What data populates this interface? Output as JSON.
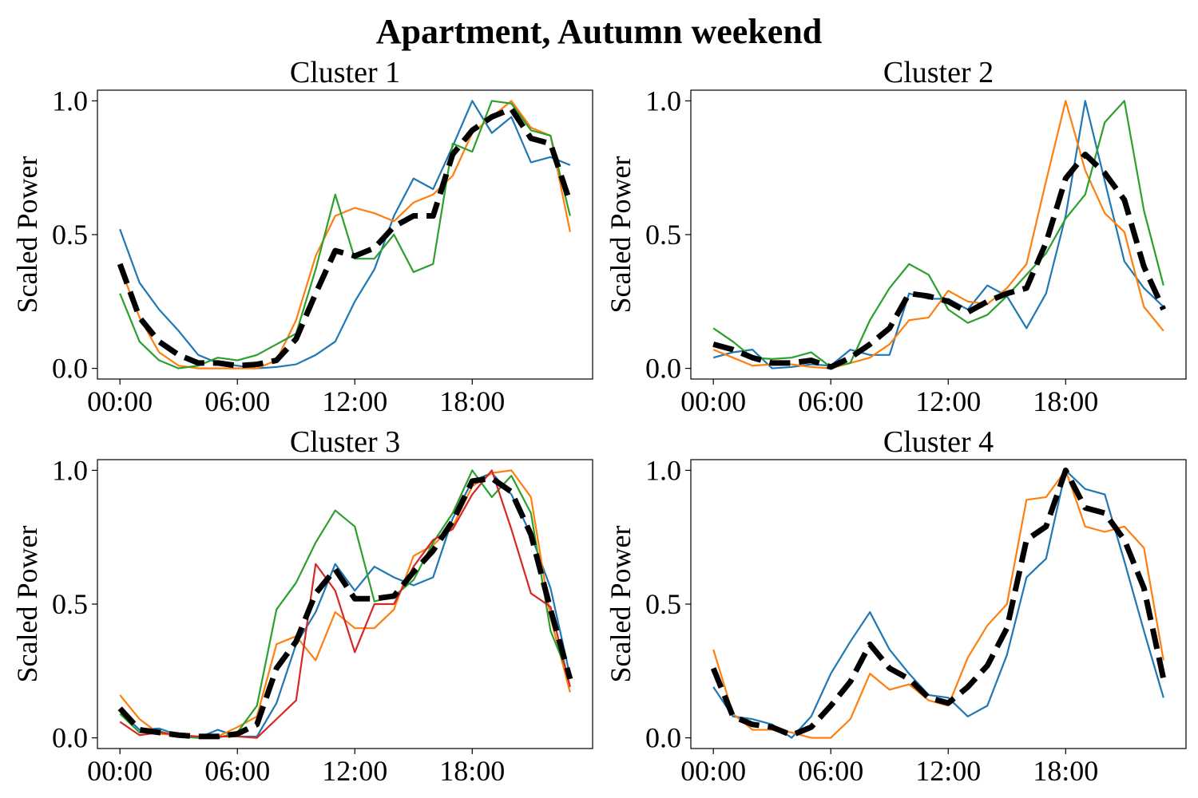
{
  "figure": {
    "title": "Apartment, Autumn weekend"
  },
  "colors": {
    "C0": "#1f77b4",
    "C1": "#ff7f0e",
    "C2": "#2ca02c",
    "C3": "#d62728",
    "centroid": "#000000"
  },
  "chart_data": [
    {
      "type": "line",
      "title": "Cluster 1",
      "ylabel": "Scaled Power",
      "xlabel": "",
      "x": [
        0,
        1,
        2,
        3,
        4,
        5,
        6,
        7,
        8,
        9,
        10,
        11,
        12,
        13,
        14,
        15,
        16,
        17,
        18,
        19,
        20,
        21,
        22,
        23
      ],
      "xticks": [
        0,
        6,
        12,
        18
      ],
      "xtick_labels": [
        "00:00",
        "06:00",
        "12:00",
        "18:00"
      ],
      "yticks": [
        0.0,
        0.5,
        1.0
      ],
      "ytick_labels": [
        "0.0",
        "0.5",
        "1.0"
      ],
      "xlim": [
        -1.15,
        24.15
      ],
      "ylim": [
        -0.04,
        1.04
      ],
      "grid": false,
      "series": [
        {
          "color": "C0",
          "values": [
            0.52,
            0.32,
            0.22,
            0.14,
            0.05,
            0.02,
            0.01,
            0.0,
            0.005,
            0.015,
            0.05,
            0.1,
            0.25,
            0.37,
            0.57,
            0.71,
            0.67,
            0.83,
            1.0,
            0.88,
            0.94,
            0.77,
            0.79,
            0.76
          ]
        },
        {
          "color": "C1",
          "values": [
            0.38,
            0.19,
            0.06,
            0.01,
            0.0,
            0.0,
            0.0,
            0.0,
            0.03,
            0.18,
            0.42,
            0.57,
            0.6,
            0.58,
            0.55,
            0.62,
            0.65,
            0.72,
            0.88,
            0.94,
            1.0,
            0.9,
            0.87,
            0.51
          ]
        },
        {
          "color": "C2",
          "values": [
            0.28,
            0.1,
            0.03,
            0.0,
            0.01,
            0.04,
            0.03,
            0.05,
            0.09,
            0.13,
            0.37,
            0.65,
            0.41,
            0.41,
            0.5,
            0.36,
            0.39,
            0.84,
            0.81,
            1.0,
            0.99,
            0.89,
            0.87,
            0.57
          ]
        },
        {
          "color": "centroid",
          "dashed": true,
          "values": [
            0.39,
            0.19,
            0.1,
            0.05,
            0.02,
            0.02,
            0.01,
            0.015,
            0.03,
            0.11,
            0.28,
            0.44,
            0.42,
            0.45,
            0.53,
            0.57,
            0.57,
            0.8,
            0.89,
            0.94,
            0.97,
            0.86,
            0.84,
            0.62
          ]
        }
      ]
    },
    {
      "type": "line",
      "title": "Cluster 2",
      "ylabel": "Scaled Power",
      "xlabel": "",
      "x": [
        0,
        1,
        2,
        3,
        4,
        5,
        6,
        7,
        8,
        9,
        10,
        11,
        12,
        13,
        14,
        15,
        16,
        17,
        18,
        19,
        20,
        21,
        22,
        23
      ],
      "xticks": [
        0,
        6,
        12,
        18
      ],
      "xtick_labels": [
        "00:00",
        "06:00",
        "12:00",
        "18:00"
      ],
      "yticks": [
        0.0,
        0.5,
        1.0
      ],
      "ytick_labels": [
        "0.0",
        "0.5",
        "1.0"
      ],
      "xlim": [
        -1.15,
        24.15
      ],
      "ylim": [
        -0.04,
        1.04
      ],
      "grid": false,
      "series": [
        {
          "color": "C0",
          "values": [
            0.04,
            0.06,
            0.07,
            0.0,
            0.005,
            0.015,
            0.01,
            0.07,
            0.05,
            0.05,
            0.28,
            0.26,
            0.26,
            0.22,
            0.31,
            0.27,
            0.15,
            0.28,
            0.57,
            1.0,
            0.7,
            0.4,
            0.3,
            0.23
          ]
        },
        {
          "color": "C1",
          "values": [
            0.07,
            0.04,
            0.01,
            0.015,
            0.015,
            0.005,
            0.0,
            0.02,
            0.04,
            0.09,
            0.18,
            0.19,
            0.29,
            0.25,
            0.24,
            0.3,
            0.39,
            0.7,
            1.0,
            0.74,
            0.58,
            0.51,
            0.23,
            0.14
          ]
        },
        {
          "color": "C2",
          "values": [
            0.15,
            0.1,
            0.04,
            0.035,
            0.04,
            0.06,
            0.005,
            0.02,
            0.18,
            0.3,
            0.39,
            0.35,
            0.22,
            0.17,
            0.2,
            0.27,
            0.35,
            0.43,
            0.56,
            0.65,
            0.92,
            1.0,
            0.59,
            0.31
          ]
        },
        {
          "color": "centroid",
          "dashed": true,
          "values": [
            0.09,
            0.07,
            0.04,
            0.02,
            0.02,
            0.03,
            0.005,
            0.04,
            0.09,
            0.15,
            0.28,
            0.27,
            0.25,
            0.21,
            0.25,
            0.28,
            0.3,
            0.47,
            0.71,
            0.8,
            0.73,
            0.63,
            0.38,
            0.22
          ]
        }
      ]
    },
    {
      "type": "line",
      "title": "Cluster 3",
      "ylabel": "Scaled Power",
      "xlabel": "",
      "x": [
        0,
        1,
        2,
        3,
        4,
        5,
        6,
        7,
        8,
        9,
        10,
        11,
        12,
        13,
        14,
        15,
        16,
        17,
        18,
        19,
        20,
        21,
        22,
        23
      ],
      "xticks": [
        0,
        6,
        12,
        18
      ],
      "xtick_labels": [
        "00:00",
        "06:00",
        "12:00",
        "18:00"
      ],
      "yticks": [
        0.0,
        0.5,
        1.0
      ],
      "ytick_labels": [
        "0.0",
        "0.5",
        "1.0"
      ],
      "xlim": [
        -1.15,
        24.15
      ],
      "ylim": [
        -0.04,
        1.04
      ],
      "grid": false,
      "series": [
        {
          "color": "C0",
          "values": [
            0.1,
            0.03,
            0.035,
            0.01,
            0.0,
            0.03,
            0.005,
            0.005,
            0.13,
            0.35,
            0.47,
            0.65,
            0.55,
            0.64,
            0.6,
            0.57,
            0.6,
            0.82,
            0.96,
            0.99,
            0.91,
            0.76,
            0.56,
            0.23
          ]
        },
        {
          "color": "C1",
          "values": [
            0.16,
            0.07,
            0.015,
            0.01,
            0.005,
            0.005,
            0.04,
            0.08,
            0.35,
            0.38,
            0.29,
            0.47,
            0.41,
            0.41,
            0.48,
            0.68,
            0.72,
            0.79,
            0.94,
            0.99,
            1.0,
            0.9,
            0.45,
            0.17
          ]
        },
        {
          "color": "C2",
          "values": [
            0.09,
            0.02,
            0.025,
            0.005,
            0.0,
            0.0,
            0.02,
            0.12,
            0.48,
            0.58,
            0.73,
            0.85,
            0.79,
            0.51,
            0.53,
            0.59,
            0.73,
            0.84,
            1.0,
            0.9,
            0.98,
            0.84,
            0.4,
            0.22
          ]
        },
        {
          "color": "C3",
          "values": [
            0.06,
            0.01,
            0.02,
            0.01,
            0.005,
            0.005,
            0.005,
            0.0,
            0.07,
            0.14,
            0.65,
            0.55,
            0.32,
            0.5,
            0.5,
            0.64,
            0.74,
            0.78,
            0.91,
            1.0,
            0.78,
            0.54,
            0.49,
            0.19
          ]
        },
        {
          "color": "centroid",
          "dashed": true,
          "values": [
            0.11,
            0.03,
            0.02,
            0.01,
            0.005,
            0.005,
            0.015,
            0.05,
            0.26,
            0.36,
            0.54,
            0.63,
            0.52,
            0.52,
            0.53,
            0.62,
            0.7,
            0.81,
            0.96,
            0.97,
            0.92,
            0.76,
            0.48,
            0.22
          ]
        }
      ]
    },
    {
      "type": "line",
      "title": "Cluster 4",
      "ylabel": "Scaled Power",
      "xlabel": "",
      "x": [
        0,
        1,
        2,
        3,
        4,
        5,
        6,
        7,
        8,
        9,
        10,
        11,
        12,
        13,
        14,
        15,
        16,
        17,
        18,
        19,
        20,
        21,
        22,
        23
      ],
      "xticks": [
        0,
        6,
        12,
        18
      ],
      "xtick_labels": [
        "00:00",
        "06:00",
        "12:00",
        "18:00"
      ],
      "yticks": [
        0.0,
        0.5,
        1.0
      ],
      "ytick_labels": [
        "0.0",
        "0.5",
        "1.0"
      ],
      "xlim": [
        -1.15,
        24.15
      ],
      "ylim": [
        -0.04,
        1.04
      ],
      "grid": false,
      "series": [
        {
          "color": "C0",
          "values": [
            0.19,
            0.08,
            0.07,
            0.05,
            0.0,
            0.08,
            0.24,
            0.36,
            0.47,
            0.33,
            0.24,
            0.16,
            0.15,
            0.08,
            0.12,
            0.31,
            0.6,
            0.67,
            1.0,
            0.93,
            0.91,
            0.66,
            0.4,
            0.15
          ]
        },
        {
          "color": "C1",
          "values": [
            0.33,
            0.09,
            0.03,
            0.03,
            0.02,
            0.0,
            0.0,
            0.07,
            0.24,
            0.18,
            0.2,
            0.14,
            0.12,
            0.3,
            0.42,
            0.5,
            0.89,
            0.9,
            1.0,
            0.79,
            0.77,
            0.79,
            0.71,
            0.29
          ]
        },
        {
          "color": "centroid",
          "dashed": true,
          "values": [
            0.26,
            0.08,
            0.05,
            0.04,
            0.01,
            0.04,
            0.12,
            0.21,
            0.35,
            0.26,
            0.22,
            0.15,
            0.13,
            0.19,
            0.27,
            0.41,
            0.74,
            0.79,
            1.0,
            0.86,
            0.84,
            0.74,
            0.56,
            0.22
          ]
        }
      ]
    }
  ]
}
